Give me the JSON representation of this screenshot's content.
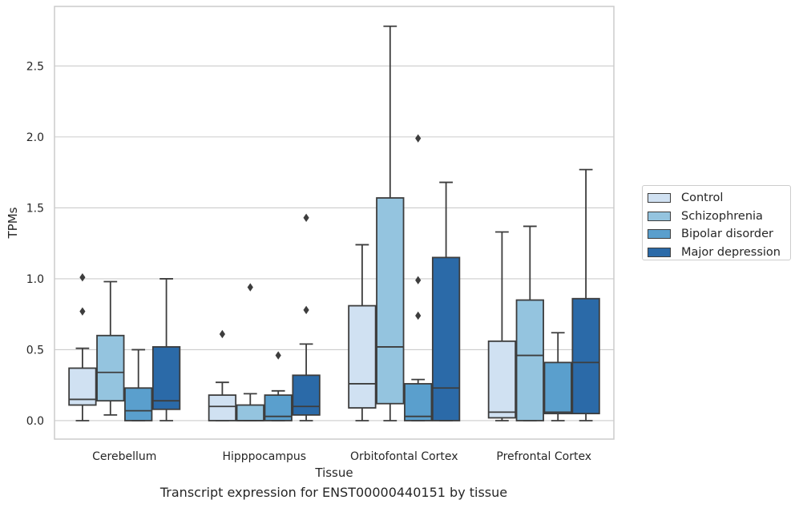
{
  "chart_data": {
    "type": "box",
    "xlabel": "Tissue",
    "ylabel": "TPMs",
    "caption": "Transcript expression for ENST00000440151 by tissue",
    "ylim": [
      -0.13,
      2.92
    ],
    "yticks": [
      "0.0",
      "0.5",
      "1.0",
      "1.5",
      "2.0",
      "2.5"
    ],
    "grid": true,
    "legend_position": "right",
    "categories": [
      "Cerebellum",
      "Hipppocampus",
      "Orbitofontal Cortex",
      "Prefrontal Cortex"
    ],
    "series": [
      {
        "name": "Control",
        "color": "#d0e1f2",
        "boxes": [
          {
            "whislo": 0.0,
            "q1": 0.11,
            "med": 0.15,
            "q3": 0.37,
            "whishi": 0.51,
            "fliers": [
              0.77,
              1.01
            ]
          },
          {
            "whislo": 0.0,
            "q1": 0.0,
            "med": 0.1,
            "q3": 0.18,
            "whishi": 0.27,
            "fliers": [
              0.61
            ]
          },
          {
            "whislo": 0.0,
            "q1": 0.09,
            "med": 0.26,
            "q3": 0.81,
            "whishi": 1.24,
            "fliers": []
          },
          {
            "whislo": 0.0,
            "q1": 0.02,
            "med": 0.06,
            "q3": 0.56,
            "whishi": 1.33,
            "fliers": []
          }
        ]
      },
      {
        "name": "Schizophrenia",
        "color": "#94c4df",
        "boxes": [
          {
            "whislo": 0.04,
            "q1": 0.14,
            "med": 0.34,
            "q3": 0.6,
            "whishi": 0.98,
            "fliers": []
          },
          {
            "whislo": 0.0,
            "q1": 0.0,
            "med": 0.0,
            "q3": 0.11,
            "whishi": 0.19,
            "fliers": [
              0.94
            ]
          },
          {
            "whislo": 0.0,
            "q1": 0.12,
            "med": 0.52,
            "q3": 1.57,
            "whishi": 2.78,
            "fliers": []
          },
          {
            "whislo": 0.0,
            "q1": 0.0,
            "med": 0.46,
            "q3": 0.85,
            "whishi": 1.37,
            "fliers": []
          }
        ]
      },
      {
        "name": "Bipolar disorder",
        "color": "#5a9fcd",
        "boxes": [
          {
            "whislo": 0.0,
            "q1": 0.0,
            "med": 0.07,
            "q3": 0.23,
            "whishi": 0.5,
            "fliers": []
          },
          {
            "whislo": 0.0,
            "q1": 0.0,
            "med": 0.03,
            "q3": 0.18,
            "whishi": 0.21,
            "fliers": [
              0.46
            ]
          },
          {
            "whislo": 0.0,
            "q1": 0.0,
            "med": 0.03,
            "q3": 0.26,
            "whishi": 0.29,
            "fliers": [
              0.74,
              0.99,
              1.99
            ]
          },
          {
            "whislo": 0.0,
            "q1": 0.05,
            "med": 0.06,
            "q3": 0.41,
            "whishi": 0.62,
            "fliers": []
          }
        ]
      },
      {
        "name": "Major depression",
        "color": "#2b6aa8",
        "boxes": [
          {
            "whislo": 0.0,
            "q1": 0.08,
            "med": 0.14,
            "q3": 0.52,
            "whishi": 1.0,
            "fliers": []
          },
          {
            "whislo": 0.0,
            "q1": 0.04,
            "med": 0.1,
            "q3": 0.32,
            "whishi": 0.54,
            "fliers": [
              0.78,
              1.43
            ]
          },
          {
            "whislo": 0.0,
            "q1": 0.0,
            "med": 0.23,
            "q3": 1.15,
            "whishi": 1.68,
            "fliers": []
          },
          {
            "whislo": 0.0,
            "q1": 0.05,
            "med": 0.41,
            "q3": 0.86,
            "whishi": 1.77,
            "fliers": []
          }
        ]
      }
    ]
  }
}
